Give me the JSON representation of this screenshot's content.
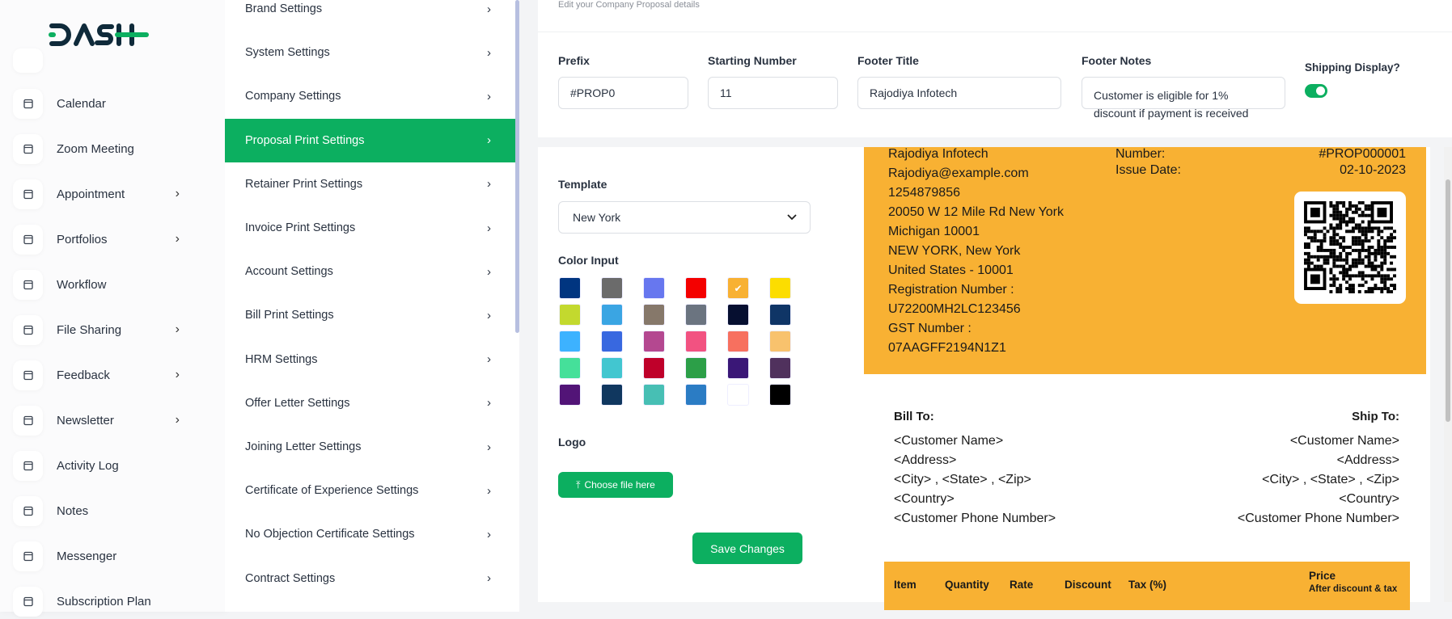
{
  "brand": {
    "logo_text": "DASH"
  },
  "sidebar": {
    "items": [
      {
        "label": "Calendar",
        "icon": "calendar-icon",
        "chevron": false
      },
      {
        "label": "Zoom Meeting",
        "icon": "video-icon",
        "chevron": false
      },
      {
        "label": "Appointment",
        "icon": "calendar-clock-icon",
        "chevron": true
      },
      {
        "label": "Portfolios",
        "icon": "briefcase-icon",
        "chevron": true
      },
      {
        "label": "Workflow",
        "icon": "workflow-icon",
        "chevron": false
      },
      {
        "label": "File Sharing",
        "icon": "file-icon",
        "chevron": true
      },
      {
        "label": "Feedback",
        "icon": "clipboard-icon",
        "chevron": true
      },
      {
        "label": "Newsletter",
        "icon": "mail-icon",
        "chevron": true
      },
      {
        "label": "Activity Log",
        "icon": "activity-icon",
        "chevron": false
      },
      {
        "label": "Notes",
        "icon": "notes-icon",
        "chevron": false
      },
      {
        "label": "Messenger",
        "icon": "message-icon",
        "chevron": false
      },
      {
        "label": "Subscription Plan",
        "icon": "subscription-icon",
        "chevron": false
      }
    ]
  },
  "settings_menu": {
    "items": [
      "Brand Settings",
      "System Settings",
      "Company Settings",
      "Proposal Print Settings",
      "Retainer Print Settings",
      "Invoice Print Settings",
      "Account Settings",
      "Bill Print Settings",
      "HRM Settings",
      "Offer Letter Settings",
      "Joining Letter Settings",
      "Certificate of Experience Settings",
      "No Objection Certificate Settings",
      "Contract Settings"
    ],
    "active": "Proposal Print Settings",
    "chevron": "›"
  },
  "form": {
    "subtitle": "Edit your Company Proposal details",
    "prefix": {
      "label": "Prefix",
      "value": "#PROP0"
    },
    "starting_number": {
      "label": "Starting Number",
      "value": "11"
    },
    "footer_title": {
      "label": "Footer Title",
      "value": "Rajodiya Infotech"
    },
    "footer_notes": {
      "label": "Footer Notes",
      "value": "Customer is eligible for 1% discount if payment is received"
    },
    "shipping_display": {
      "label": "Shipping Display?",
      "enabled": true
    },
    "template": {
      "label": "Template",
      "value": "New York"
    },
    "color_input": {
      "label": "Color Input",
      "selected": "#f8b133",
      "colors": [
        "#003580",
        "#6b6b6b",
        "#6777ef",
        "#f40000",
        "#f8b133",
        "#fcdd00",
        "#c3d92e",
        "#3aa5e3",
        "#86786a",
        "#6b7480",
        "#060f30",
        "#0f3566",
        "#3db2ff",
        "#3868e0",
        "#b44890",
        "#f25281",
        "#f7705f",
        "#f8c26d",
        "#45e09a",
        "#42c6d0",
        "#bf002a",
        "#2c9f48",
        "#3a1777",
        "#50315d",
        "#521477",
        "#10375f",
        "#47bfb4",
        "#2b7cc4",
        "#ffffff",
        "#000000"
      ]
    },
    "logo": {
      "label": "Logo",
      "button": "Choose file here"
    },
    "save_button": "Save Changes"
  },
  "preview": {
    "company_lines": [
      "Rajodiya Infotech",
      "Rajodiya@example.com",
      "1254879856",
      "20050 W 12 Mile Rd New York",
      "Michigan 10001",
      "NEW YORK, New York",
      "United States - 10001",
      "Registration Number :",
      "U72200MH2LC123456",
      "GST Number :",
      "07AAGFF2194N1Z1"
    ],
    "number_label": "Number:",
    "number_value": "#PROP000001",
    "date_label": "Issue Date:",
    "date_value": "02-10-2023",
    "bill_to": "Bill To:",
    "ship_to": "Ship To:",
    "address_lines": [
      "<Customer Name>",
      "<Address>",
      "<City> , <State> , <Zip>",
      "<Country>",
      "<Customer Phone Number>"
    ],
    "table_headers": {
      "item": "Item",
      "quantity": "Quantity",
      "rate": "Rate",
      "discount": "Discount",
      "tax": "Tax (%)",
      "price": "Price",
      "price_sub": "After discount & tax"
    }
  },
  "colors": {
    "accent": "#0caf60",
    "template_color": "#f8b133"
  }
}
